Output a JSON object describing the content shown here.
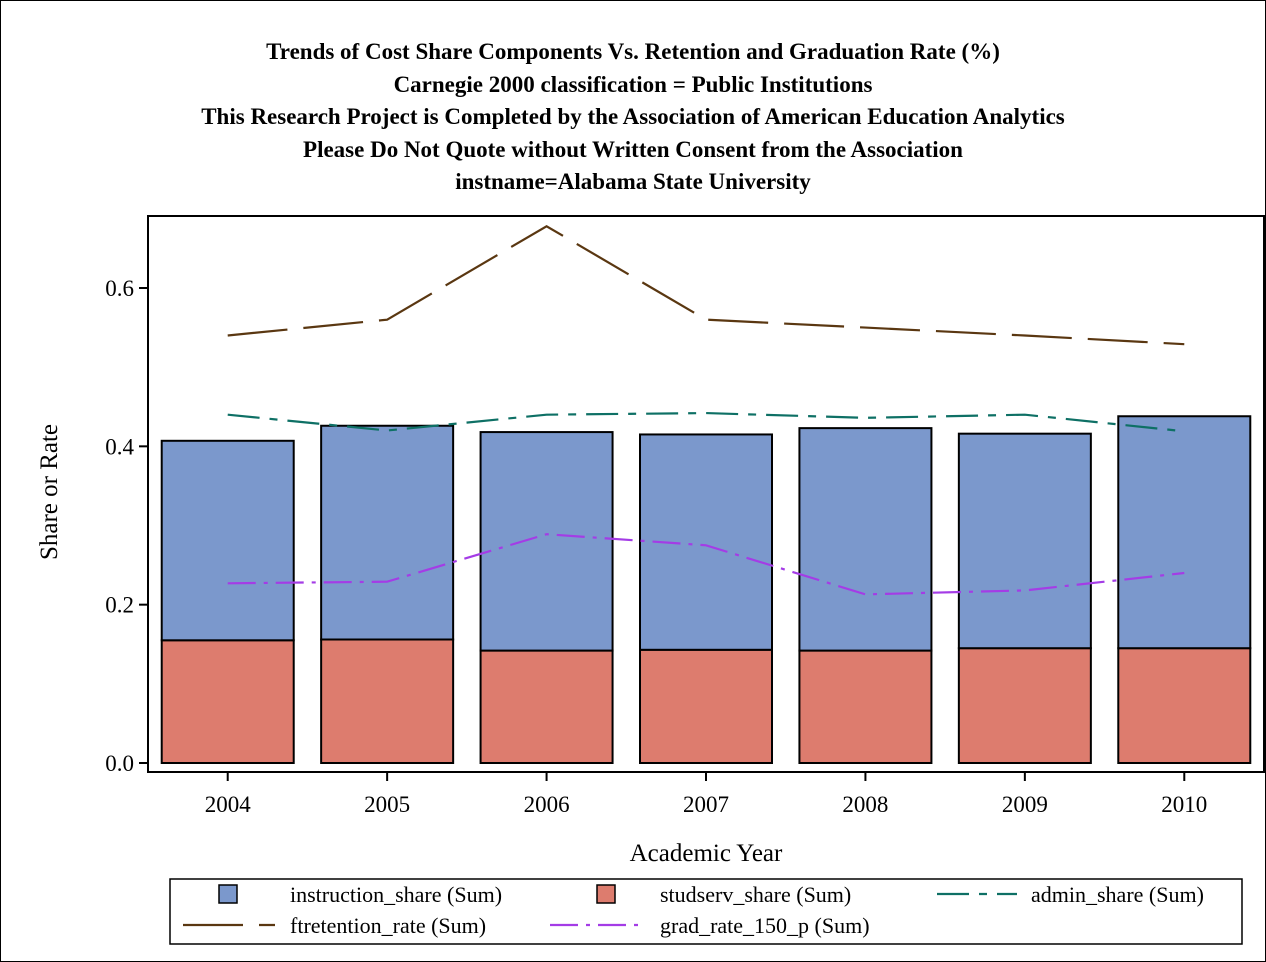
{
  "titles": [
    "Trends of Cost Share Components Vs. Retention and Graduation Rate (%)",
    "Carnegie 2000 classification = Public Institutions",
    "This Research Project is Completed by the Association of American Education Analytics",
    "Please Do Not Quote without Written Consent from the Association",
    "instname=Alabama State University"
  ],
  "chart_data": {
    "type": "bar",
    "stacked": true,
    "categories": [
      "2004",
      "2005",
      "2006",
      "2007",
      "2008",
      "2009",
      "2010"
    ],
    "xlabel": "Academic Year",
    "ylabel": "Share or Rate",
    "ylim": [
      0,
      0.68
    ],
    "yticks": [
      0.0,
      0.2,
      0.4,
      0.6
    ],
    "ytick_labels": [
      "0.0",
      "0.2",
      "0.4",
      "0.6"
    ],
    "grid": false,
    "legend_position": "bottom",
    "bar_series": [
      {
        "name": "studserv_share (Sum)",
        "color": "#dd7c6e",
        "values": [
          0.155,
          0.156,
          0.142,
          0.143,
          0.142,
          0.145,
          0.145
        ]
      },
      {
        "name": "instruction_share (Sum)",
        "color": "#7b98cc",
        "values": [
          0.252,
          0.27,
          0.276,
          0.272,
          0.281,
          0.271,
          0.293
        ]
      }
    ],
    "line_series": [
      {
        "name": "admin_share (Sum)",
        "color": "#0e7065",
        "dash": "32 10 8 10",
        "values": [
          0.44,
          0.42,
          0.44,
          0.442,
          0.436,
          0.44,
          0.419
        ]
      },
      {
        "name": "ftretention_rate (Sum)",
        "color": "#5a3711",
        "dash": "60 16",
        "values": [
          0.54,
          0.56,
          0.678,
          0.56,
          0.55,
          0.54,
          0.529
        ]
      },
      {
        "name": "grad_rate_150_p (Sum)",
        "color": "#a43ce6",
        "dash": "28 8 4 8",
        "values": [
          0.227,
          0.229,
          0.289,
          0.275,
          0.213,
          0.218,
          0.24
        ]
      }
    ],
    "legend": [
      {
        "name": "instruction_share (Sum)",
        "kind": "box",
        "color": "#7b98cc"
      },
      {
        "name": "studserv_share (Sum)",
        "kind": "box",
        "color": "#dd7c6e"
      },
      {
        "name": "admin_share (Sum)",
        "kind": "line",
        "color": "#0e7065",
        "dash": "32 10 8 10"
      },
      {
        "name": "ftretention_rate (Sum)",
        "kind": "line",
        "color": "#5a3711",
        "dash": "60 16"
      },
      {
        "name": "grad_rate_150_p (Sum)",
        "kind": "line",
        "color": "#a43ce6",
        "dash": "28 8 4 8"
      }
    ]
  }
}
